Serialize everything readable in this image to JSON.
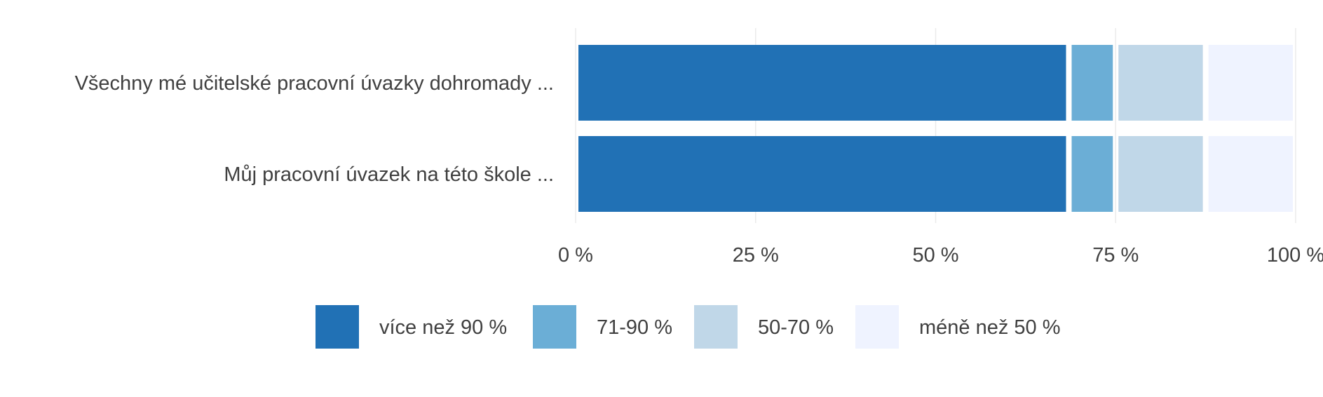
{
  "chart_data": {
    "type": "bar",
    "orientation": "horizontal",
    "stacked": true,
    "normalized_percent": true,
    "title": "",
    "xlabel": "",
    "ylabel": "",
    "xlim": [
      0,
      100
    ],
    "categories": [
      "Všechny mé učitelské pracovní úvazky dohromady ...",
      "Můj pracovní úvazek na této škole ..."
    ],
    "series": [
      {
        "name": "více než 90 %",
        "color": "#2171b5",
        "values": [
          68.5,
          68.5
        ]
      },
      {
        "name": "71-90 %",
        "color": "#6baed6",
        "values": [
          6.5,
          6.5
        ]
      },
      {
        "name": "50-70 %",
        "color": "#c0d7e8",
        "values": [
          12.5,
          12.5
        ]
      },
      {
        "name": "méně než 50 %",
        "color": "#eff3ff",
        "values": [
          12.5,
          12.5
        ]
      }
    ],
    "x_ticks": [
      {
        "value": 0,
        "label": "0 %"
      },
      {
        "value": 25,
        "label": "25 %"
      },
      {
        "value": 50,
        "label": "50 %"
      },
      {
        "value": 75,
        "label": "75 %"
      },
      {
        "value": 100,
        "label": "100 %"
      }
    ],
    "grid": "vertical",
    "legend_position": "bottom"
  }
}
